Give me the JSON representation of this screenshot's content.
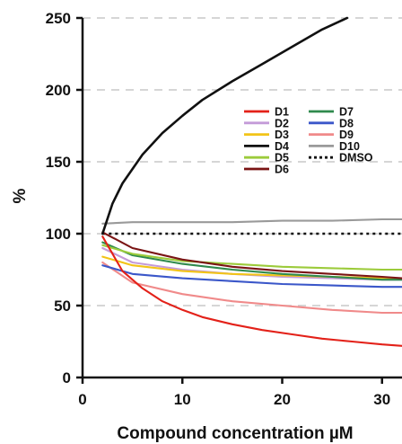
{
  "chart_data": {
    "type": "line",
    "title": "",
    "xlabel": "Compound concentration µM",
    "ylabel": "%",
    "xlim": [
      0,
      32
    ],
    "ylim": [
      0,
      250
    ],
    "x_ticks": [
      "0",
      "10",
      "20",
      "30"
    ],
    "y_ticks": [
      "0",
      "50",
      "100",
      "150",
      "200",
      "250"
    ],
    "grid": "horizontal dashed",
    "legend_position": "upper-right inside plot, two columns",
    "series": [
      {
        "name": "D1",
        "color": "#e32119",
        "dash": "solid",
        "x": [
          2,
          4,
          6,
          8,
          10,
          12,
          15,
          18,
          21,
          24,
          27,
          30,
          32
        ],
        "y": [
          98,
          74,
          62,
          53,
          47,
          42,
          37,
          33,
          30,
          27,
          25,
          23,
          22
        ]
      },
      {
        "name": "D2",
        "color": "#c49bd8",
        "dash": "solid",
        "x": [
          2,
          5,
          10,
          15,
          20,
          25,
          30,
          32
        ],
        "y": [
          90,
          80,
          75,
          72,
          70,
          69,
          68,
          68
        ]
      },
      {
        "name": "D3",
        "color": "#f2c418",
        "dash": "solid",
        "x": [
          2,
          5,
          10,
          15,
          20,
          25,
          30,
          32
        ],
        "y": [
          84,
          78,
          74,
          72,
          71,
          70,
          69,
          69
        ]
      },
      {
        "name": "D4",
        "color": "#111111",
        "dash": "solid",
        "x": [
          2,
          3,
          4,
          6,
          8,
          10,
          12,
          15,
          18,
          21,
          24,
          26.5
        ],
        "y": [
          100,
          121,
          135,
          155,
          170,
          182,
          193,
          206,
          218,
          230,
          242,
          250
        ]
      },
      {
        "name": "D5",
        "color": "#9ccb3b",
        "dash": "solid",
        "x": [
          2,
          5,
          10,
          15,
          20,
          25,
          30,
          32
        ],
        "y": [
          92,
          86,
          81,
          79,
          77,
          76,
          75,
          75
        ]
      },
      {
        "name": "D6",
        "color": "#7a1414",
        "dash": "solid",
        "x": [
          2,
          5,
          10,
          15,
          20,
          25,
          30,
          32
        ],
        "y": [
          101,
          90,
          82,
          77,
          74,
          72,
          70,
          69
        ]
      },
      {
        "name": "D7",
        "color": "#2f8a4d",
        "dash": "solid",
        "x": [
          2,
          5,
          10,
          15,
          20,
          25,
          30,
          32
        ],
        "y": [
          94,
          85,
          79,
          75,
          72,
          70,
          68,
          68
        ]
      },
      {
        "name": "D8",
        "color": "#3b57c9",
        "dash": "solid",
        "x": [
          2,
          5,
          10,
          15,
          20,
          25,
          30,
          32
        ],
        "y": [
          78,
          72,
          69,
          67,
          65,
          64,
          63,
          63
        ]
      },
      {
        "name": "D9",
        "color": "#f08a8a",
        "dash": "solid",
        "x": [
          2,
          5,
          10,
          15,
          20,
          25,
          30,
          32
        ],
        "y": [
          80,
          66,
          58,
          53,
          50,
          47,
          45,
          45
        ]
      },
      {
        "name": "D10",
        "color": "#9a9a9a",
        "dash": "solid",
        "x": [
          2,
          5,
          10,
          15,
          20,
          25,
          30,
          32
        ],
        "y": [
          107,
          108,
          108,
          108,
          109,
          109,
          110,
          110
        ]
      },
      {
        "name": "DMSO",
        "color": "#111111",
        "dash": "dotted",
        "x": [
          2,
          32
        ],
        "y": [
          100,
          100
        ]
      }
    ],
    "legend_columns": [
      [
        "D1",
        "D2",
        "D3",
        "D4",
        "D5",
        "D6"
      ],
      [
        "D7",
        "D8",
        "D9",
        "D10",
        "DMSO"
      ]
    ]
  }
}
